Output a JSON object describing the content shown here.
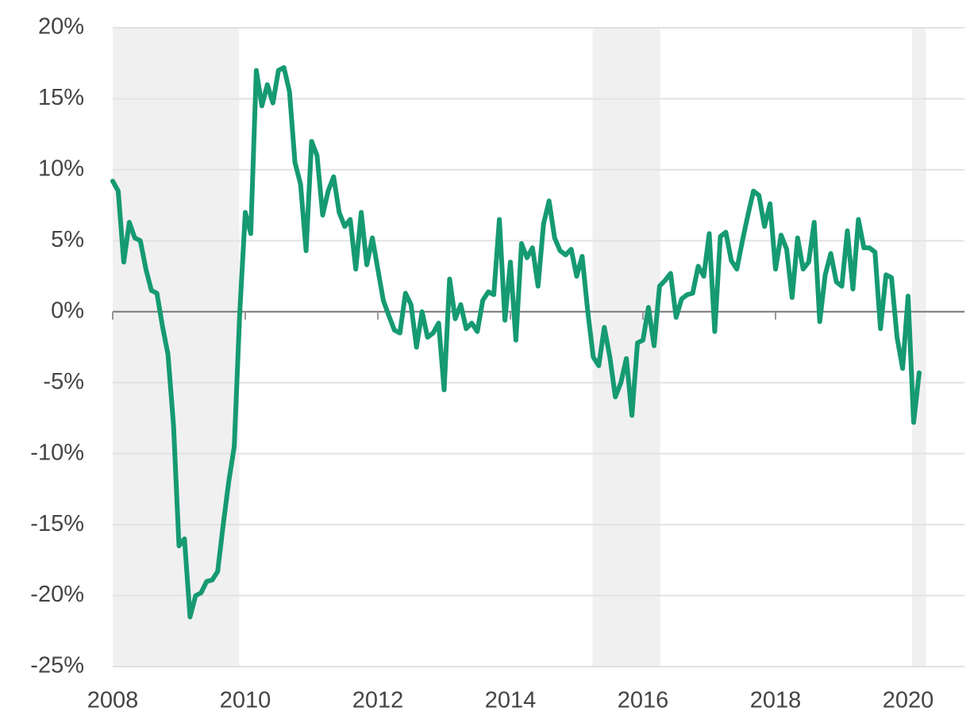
{
  "chart_data": {
    "type": "line",
    "x": [
      2008,
      2008.083,
      2008.167,
      2008.25,
      2008.333,
      2008.417,
      2008.5,
      2008.583,
      2008.667,
      2008.75,
      2008.833,
      2008.917,
      2009,
      2009.083,
      2009.167,
      2009.25,
      2009.333,
      2009.417,
      2009.5,
      2009.583,
      2009.667,
      2009.75,
      2009.833,
      2009.917,
      2010,
      2010.083,
      2010.167,
      2010.25,
      2010.333,
      2010.417,
      2010.5,
      2010.583,
      2010.667,
      2010.75,
      2010.833,
      2010.917,
      2011,
      2011.083,
      2011.167,
      2011.25,
      2011.333,
      2011.417,
      2011.5,
      2011.583,
      2011.667,
      2011.75,
      2011.833,
      2011.917,
      2012,
      2012.083,
      2012.167,
      2012.25,
      2012.333,
      2012.417,
      2012.5,
      2012.583,
      2012.667,
      2012.75,
      2012.833,
      2012.917,
      2013,
      2013.083,
      2013.167,
      2013.25,
      2013.333,
      2013.417,
      2013.5,
      2013.583,
      2013.667,
      2013.75,
      2013.833,
      2013.917,
      2014,
      2014.083,
      2014.167,
      2014.25,
      2014.333,
      2014.417,
      2014.5,
      2014.583,
      2014.667,
      2014.75,
      2014.833,
      2014.917,
      2015,
      2015.083,
      2015.167,
      2015.25,
      2015.333,
      2015.417,
      2015.5,
      2015.583,
      2015.667,
      2015.75,
      2015.833,
      2015.917,
      2016,
      2016.083,
      2016.167,
      2016.25,
      2016.333,
      2016.417,
      2016.5,
      2016.583,
      2016.667,
      2016.75,
      2016.833,
      2016.917,
      2017,
      2017.083,
      2017.167,
      2017.25,
      2017.333,
      2017.417,
      2017.5,
      2017.583,
      2017.667,
      2017.75,
      2017.833,
      2017.917,
      2018,
      2018.083,
      2018.167,
      2018.25,
      2018.333,
      2018.417,
      2018.5,
      2018.583,
      2018.667,
      2018.75,
      2018.833,
      2018.917,
      2019,
      2019.083,
      2019.167,
      2019.25,
      2019.333,
      2019.417,
      2019.5,
      2019.583,
      2019.667,
      2019.75,
      2019.833,
      2019.917,
      2020,
      2020.083,
      2020.167
    ],
    "values": [
      9.2,
      8.5,
      3.5,
      6.3,
      5.2,
      5.0,
      3.0,
      1.5,
      1.3,
      -1.0,
      -3.0,
      -8,
      -16.5,
      -16,
      -21.5,
      -20,
      -19.8,
      -19,
      -18.9,
      -18.3,
      -15,
      -12,
      -9.5,
      0,
      7,
      5.5,
      17,
      14.5,
      16,
      14.7,
      17,
      17.2,
      15.5,
      10.5,
      9,
      4.3,
      12,
      11,
      6.8,
      8.5,
      9.5,
      7,
      6,
      6.5,
      3,
      7,
      3.3,
      5.2,
      3,
      0.8,
      -0.3,
      -1.3,
      -1.5,
      1.3,
      0.5,
      -2.5,
      0,
      -1.8,
      -1.5,
      -0.8,
      -5.5,
      2.3,
      -0.5,
      0.5,
      -1.2,
      -0.8,
      -1.4,
      0.8,
      1.4,
      1.2,
      6.5,
      -0.6,
      3.5,
      -2,
      4.8,
      3.8,
      4.5,
      1.8,
      6.2,
      7.8,
      5.2,
      4.3,
      4.0,
      4.4,
      2.5,
      3.9,
      0,
      -3.2,
      -3.8,
      -1.1,
      -3.2,
      -6,
      -5,
      -3.3,
      -7.3,
      -2.2,
      -2,
      0.3,
      -2.4,
      1.8,
      2.2,
      2.7,
      -0.4,
      0.9,
      1.2,
      1.3,
      3.2,
      2.5,
      5.5,
      -1.4,
      5.3,
      5.6,
      3.6,
      3,
      5,
      6.8,
      8.5,
      8.2,
      6,
      7.6,
      3,
      5.4,
      4.4,
      1,
      5.2,
      3,
      3.5,
      6.3,
      -0.7,
      2.6,
      4.1,
      2.1,
      1.8,
      5.7,
      1.6,
      6.5,
      4.5,
      4.5,
      4.2,
      -1.2,
      2.6,
      2.4,
      -1.8,
      -4,
      1.1,
      -7.8,
      -4.3
    ],
    "color": "#169a72",
    "xlim": [
      2008,
      2020.85
    ],
    "xticks": [
      2008,
      2010,
      2012,
      2014,
      2016,
      2018,
      2020
    ],
    "ylim": [
      -25,
      20
    ],
    "yticks": [
      {
        "value": -25,
        "label": "-25%"
      },
      {
        "value": -20,
        "label": "-20%"
      },
      {
        "value": -15,
        "label": "-15%"
      },
      {
        "value": -10,
        "label": "-10%"
      },
      {
        "value": -5,
        "label": "-5%"
      },
      {
        "value": 0,
        "label": "0%"
      },
      {
        "value": 5,
        "label": "5%"
      },
      {
        "value": 10,
        "label": "10%"
      },
      {
        "value": 15,
        "label": "15%"
      },
      {
        "value": 20,
        "label": "20%"
      }
    ],
    "grid": true,
    "shaded_regions": [
      [
        2008,
        2009.91
      ],
      [
        2015.24,
        2016.26
      ],
      [
        2020.06,
        2020.27
      ]
    ],
    "shade_color": "#f0f0f0"
  }
}
